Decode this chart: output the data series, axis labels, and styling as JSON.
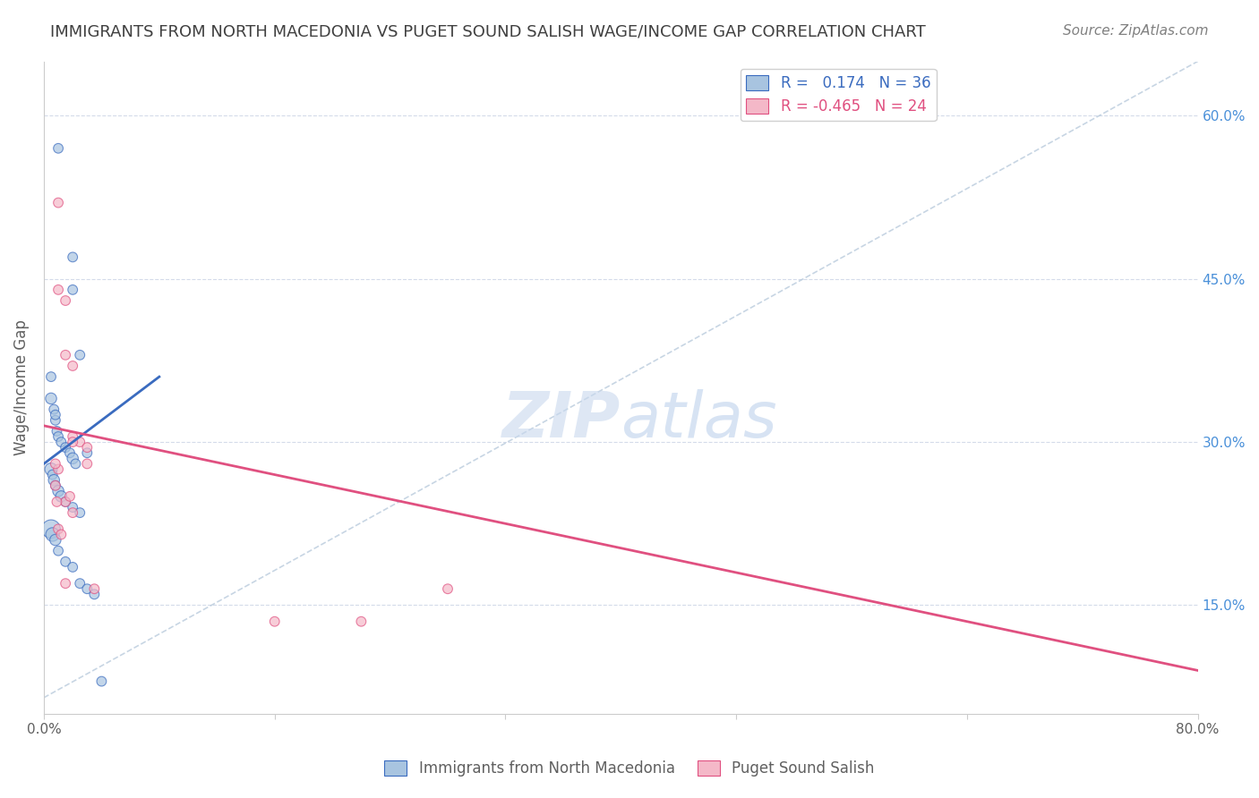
{
  "title": "IMMIGRANTS FROM NORTH MACEDONIA VS PUGET SOUND SALISH WAGE/INCOME GAP CORRELATION CHART",
  "source": "Source: ZipAtlas.com",
  "ylabel": "Wage/Income Gap",
  "yticks": [
    0.15,
    0.3,
    0.45,
    0.6
  ],
  "ytick_labels": [
    "15.0%",
    "30.0%",
    "45.0%",
    "60.0%"
  ],
  "xlim": [
    0.0,
    0.8
  ],
  "ylim": [
    0.05,
    0.65
  ],
  "r_blue": 0.174,
  "n_blue": 36,
  "r_pink": -0.465,
  "n_pink": 24,
  "blue_scatter_x": [
    0.01,
    0.02,
    0.02,
    0.025,
    0.005,
    0.005,
    0.007,
    0.008,
    0.009,
    0.01,
    0.012,
    0.015,
    0.018,
    0.02,
    0.022,
    0.005,
    0.006,
    0.007,
    0.008,
    0.01,
    0.012,
    0.015,
    0.02,
    0.025,
    0.03,
    0.005,
    0.006,
    0.008,
    0.01,
    0.015,
    0.02,
    0.025,
    0.03,
    0.035,
    0.04,
    0.008
  ],
  "blue_scatter_y": [
    0.57,
    0.47,
    0.44,
    0.38,
    0.36,
    0.34,
    0.33,
    0.32,
    0.31,
    0.305,
    0.3,
    0.295,
    0.29,
    0.285,
    0.28,
    0.275,
    0.27,
    0.265,
    0.26,
    0.255,
    0.25,
    0.245,
    0.24,
    0.235,
    0.29,
    0.22,
    0.215,
    0.21,
    0.2,
    0.19,
    0.185,
    0.17,
    0.165,
    0.16,
    0.08,
    0.325
  ],
  "blue_scatter_size": [
    60,
    60,
    60,
    60,
    60,
    80,
    60,
    60,
    60,
    60,
    60,
    60,
    60,
    80,
    60,
    100,
    60,
    80,
    60,
    80,
    80,
    60,
    60,
    60,
    60,
    220,
    120,
    80,
    60,
    60,
    60,
    60,
    60,
    60,
    60,
    60
  ],
  "pink_scatter_x": [
    0.01,
    0.01,
    0.015,
    0.015,
    0.02,
    0.02,
    0.025,
    0.03,
    0.03,
    0.01,
    0.015,
    0.02,
    0.008,
    0.008,
    0.009,
    0.01,
    0.012,
    0.015,
    0.018,
    0.02,
    0.16,
    0.22,
    0.28,
    0.035
  ],
  "pink_scatter_y": [
    0.52,
    0.44,
    0.43,
    0.38,
    0.37,
    0.305,
    0.3,
    0.295,
    0.28,
    0.275,
    0.245,
    0.235,
    0.28,
    0.26,
    0.245,
    0.22,
    0.215,
    0.17,
    0.25,
    0.3,
    0.135,
    0.135,
    0.165,
    0.165
  ],
  "pink_scatter_size": [
    60,
    60,
    60,
    60,
    60,
    60,
    60,
    60,
    60,
    60,
    60,
    60,
    60,
    60,
    60,
    60,
    60,
    60,
    60,
    60,
    60,
    60,
    60,
    60
  ],
  "blue_line_x": [
    0.0,
    0.08
  ],
  "blue_line_y": [
    0.28,
    0.36
  ],
  "pink_line_x": [
    0.0,
    0.8
  ],
  "pink_line_y": [
    0.315,
    0.09
  ],
  "diag_line_x": [
    0.0,
    0.8
  ],
  "diag_line_y": [
    0.065,
    0.65
  ],
  "watermark_zip": "ZIP",
  "watermark_atlas": "atlas",
  "blue_color": "#a8c4e0",
  "pink_color": "#f4b8c8",
  "blue_line_color": "#3a6bbf",
  "pink_line_color": "#e05080",
  "diag_color": "#b0c4d8",
  "grid_color": "#d0d8e8",
  "title_color": "#404040",
  "right_axis_color": "#4a90d9"
}
